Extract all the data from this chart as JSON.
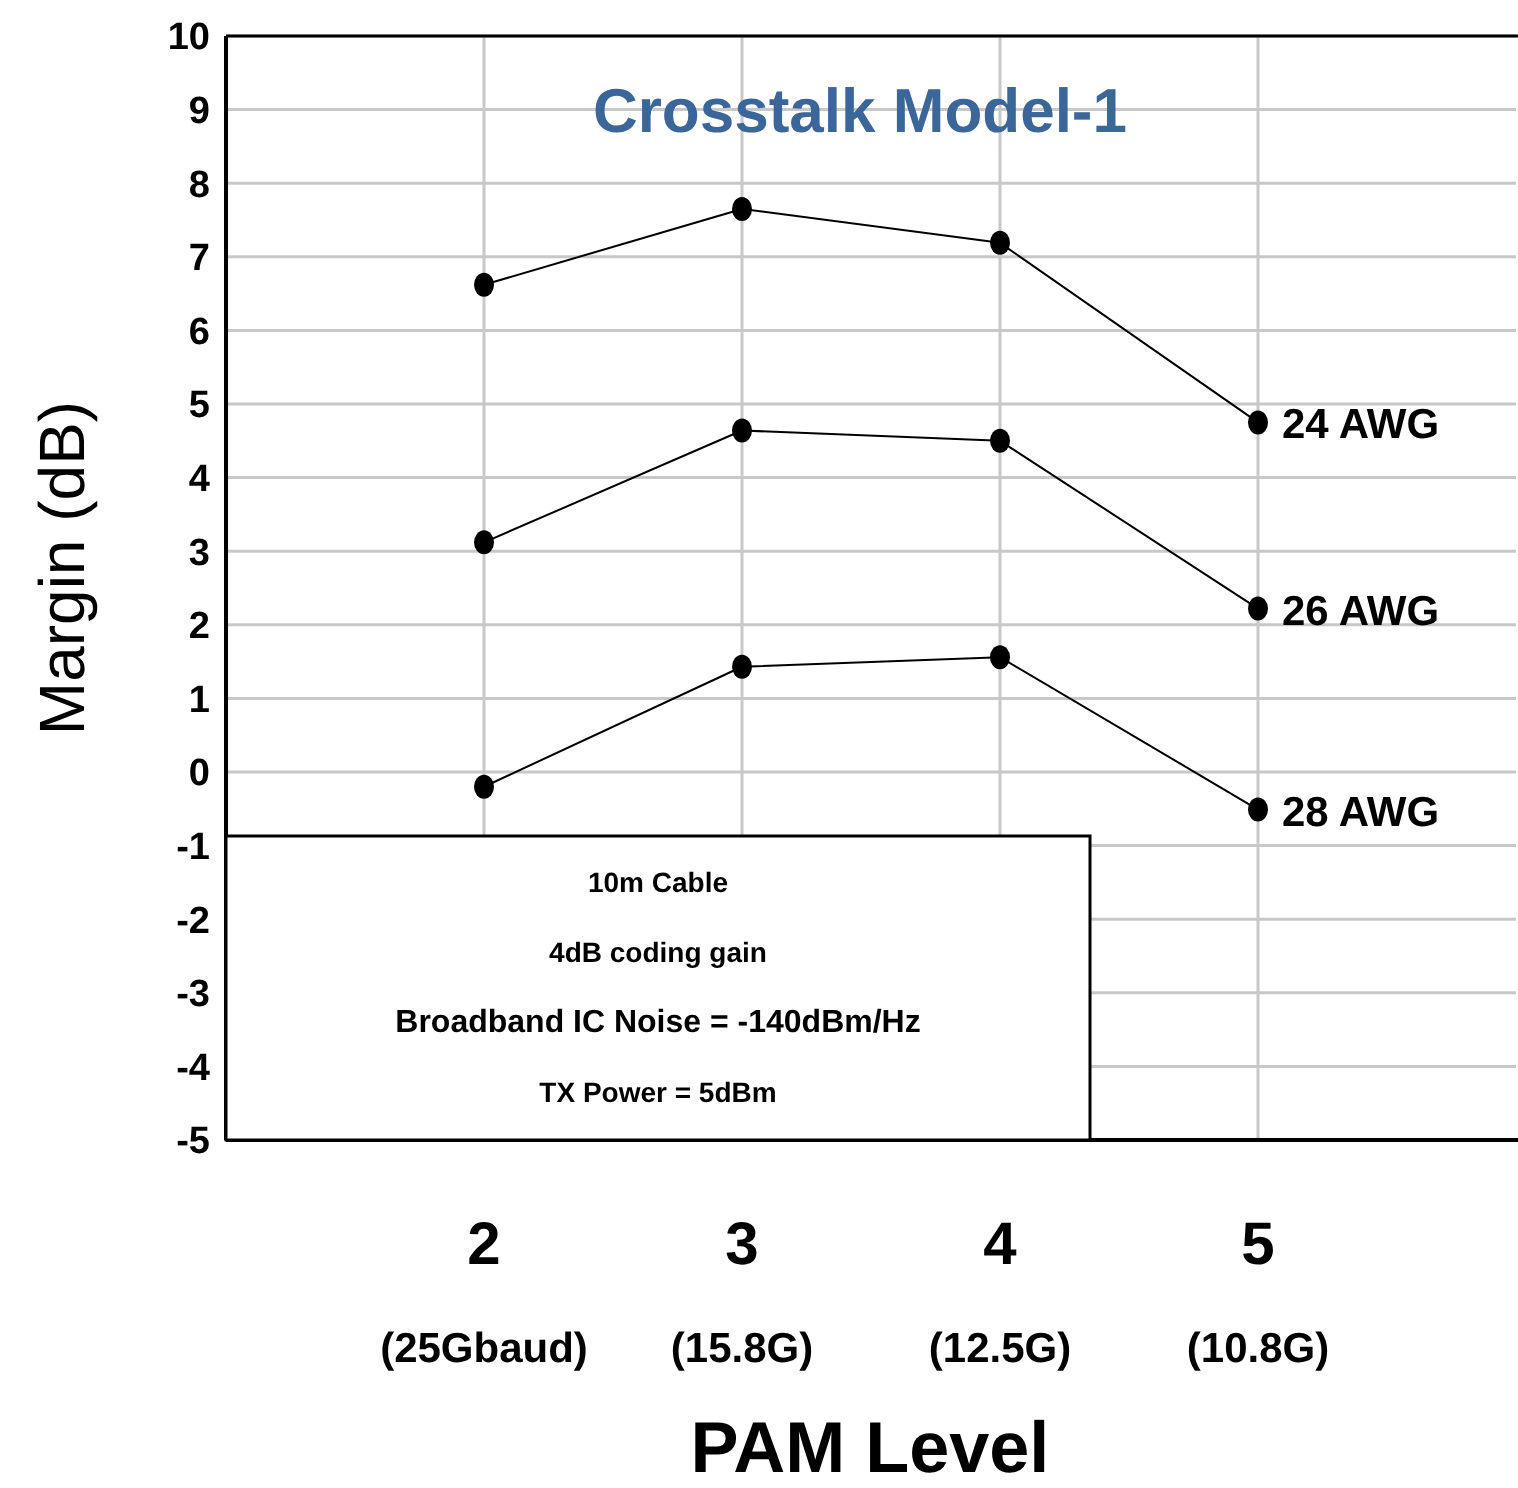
{
  "chart_data": {
    "type": "line",
    "title": "Crosstalk Model-1",
    "xlabel": "PAM Level",
    "ylabel": "Margin (dB)",
    "categories": [
      "2\n(25Gbaud)",
      "3\n(15.8G)",
      "4\n(12.5G)",
      "5\n(10.8G)"
    ],
    "series": [
      {
        "name": "24 AWG",
        "color": "#000000",
        "values": [
          6.62,
          7.65,
          7.19,
          4.75
        ]
      },
      {
        "name": "26 AWG",
        "color": "#000000",
        "values": [
          3.12,
          4.64,
          4.5,
          2.22
        ]
      },
      {
        "name": "28 AWG",
        "color": "#000000",
        "values": [
          -0.2,
          1.43,
          1.56,
          -0.51
        ]
      }
    ],
    "ylim": [
      -5,
      10
    ],
    "yticks": [
      -5,
      -4,
      -3,
      -2,
      -1,
      0,
      1,
      2,
      3,
      4,
      5,
      6,
      7,
      8,
      9,
      10
    ],
    "grid": true,
    "marker": "circle",
    "line_style": "solid",
    "annotations": [
      "10m Cable",
      "4dB coding gain",
      "Broadband IC Noise = -140dBm/Hz",
      "TX Power = 5dBm"
    ]
  }
}
